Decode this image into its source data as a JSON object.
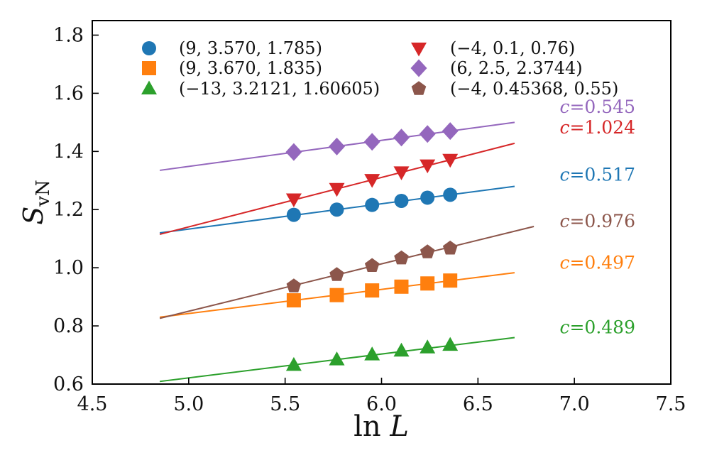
{
  "chart_data": {
    "type": "scatter",
    "xlabel": "ln L",
    "ylabel": "S_vN",
    "xlim": [
      4.5,
      7.5
    ],
    "ylim": [
      0.6,
      1.85
    ],
    "xticks": [
      "4.5",
      "5.0",
      "5.5",
      "6.0",
      "6.5",
      "7.0",
      "7.5"
    ],
    "yticks": [
      "0.6",
      "0.8",
      "1.0",
      "1.2",
      "1.4",
      "1.6",
      "1.8"
    ],
    "grid": false,
    "legend_position": "top",
    "x": [
      5.545,
      5.768,
      5.951,
      6.103,
      6.238,
      6.356
    ],
    "series": [
      {
        "name": "(9, 3.570, 1.785)",
        "marker": "circle",
        "color": "#1f77b4",
        "values": [
          1.182,
          1.2,
          1.216,
          1.23,
          1.241,
          1.251
        ],
        "fit": {
          "x": [
            4.85,
            6.69
          ],
          "y": [
            1.12,
            1.28
          ]
        },
        "c_label": "c=0.517",
        "c_label_y": 1.3
      },
      {
        "name": "(9, 3.670, 1.835)",
        "marker": "square",
        "color": "#ff7f0e",
        "values": [
          0.888,
          0.906,
          0.922,
          0.935,
          0.946,
          0.956
        ],
        "fit": {
          "x": [
            4.85,
            6.69
          ],
          "y": [
            0.83,
            0.983
          ]
        },
        "c_label": "c=0.497",
        "c_label_y": 0.997
      },
      {
        "name": "(−13, 3.2121, 1.60605)",
        "marker": "triangle-up",
        "color": "#2ca02c",
        "values": [
          0.665,
          0.684,
          0.701,
          0.714,
          0.725,
          0.734
        ],
        "fit": {
          "x": [
            4.85,
            6.69
          ],
          "y": [
            0.609,
            0.76
          ]
        },
        "c_label": "c=0.489",
        "c_label_y": 0.775
      },
      {
        "name": "(−4, 0.1, 0.76)",
        "marker": "triangle-down",
        "color": "#d62728",
        "values": [
          1.236,
          1.272,
          1.303,
          1.329,
          1.353,
          1.372
        ],
        "fit": {
          "x": [
            4.85,
            6.69
          ],
          "y": [
            1.115,
            1.428
          ]
        },
        "c_label": "c=1.024",
        "c_label_y": 1.462
      },
      {
        "name": "(6, 2.5, 2.3744)",
        "marker": "diamond",
        "color": "#9467bd",
        "values": [
          1.398,
          1.417,
          1.433,
          1.448,
          1.46,
          1.47
        ],
        "fit": {
          "x": [
            4.85,
            6.69
          ],
          "y": [
            1.335,
            1.5
          ]
        },
        "c_label": "c=0.545",
        "c_label_y": 1.533
      },
      {
        "name": "(−4, 0.45368, 0.55)",
        "marker": "pentagon",
        "color": "#8c564b",
        "values": [
          0.937,
          0.976,
          1.007,
          1.033,
          1.054,
          1.067
        ],
        "fit": {
          "x": [
            4.85,
            6.79
          ],
          "y": [
            0.826,
            1.142
          ]
        },
        "c_label": "c=0.976",
        "c_label_y": 1.14
      }
    ]
  }
}
